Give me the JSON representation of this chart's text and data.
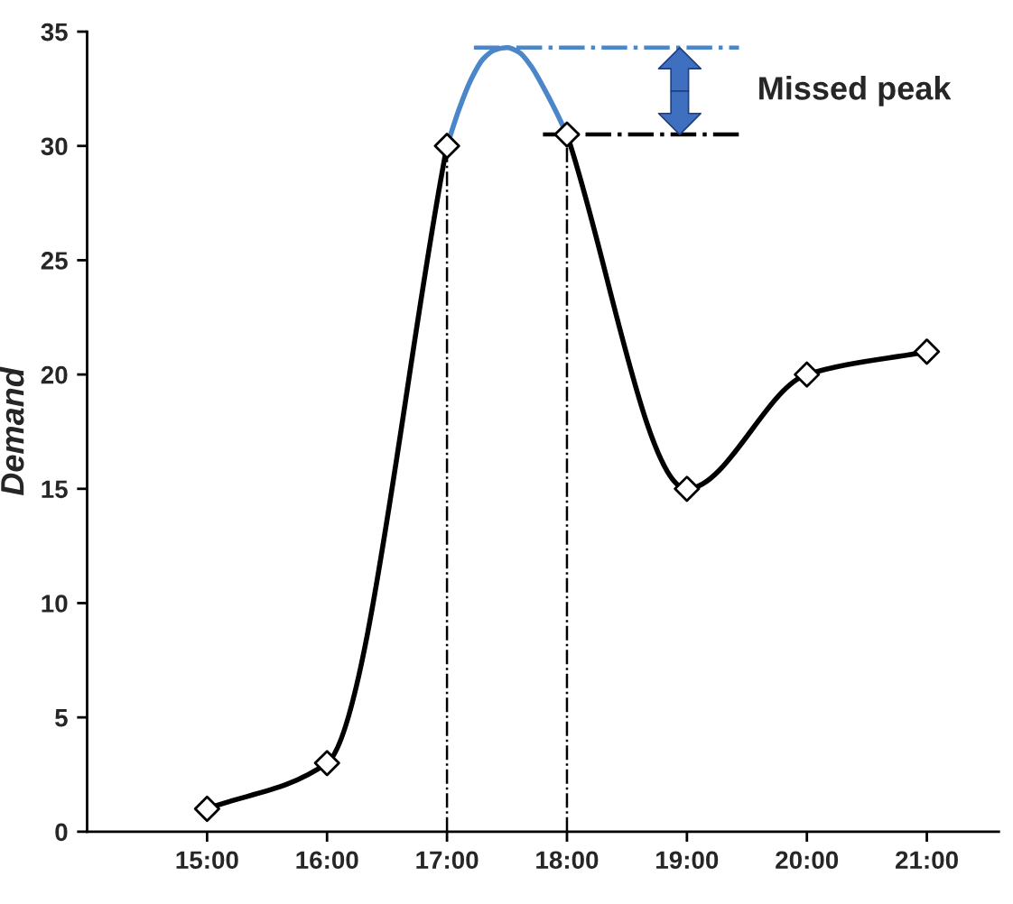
{
  "chart_data": {
    "type": "line",
    "ylabel": "Demand",
    "series": [
      {
        "color": "#000000",
        "marker": "diamond",
        "x": [
          15,
          16,
          17
        ],
        "values": [
          1,
          3,
          30
        ]
      },
      {
        "color": "#000000",
        "marker": "diamond",
        "x": [
          18,
          19,
          20,
          21
        ],
        "values": [
          30.5,
          15,
          20,
          21
        ]
      },
      {
        "color": "#4a86c8",
        "marker": "none",
        "x": [
          17,
          17.1,
          17.2,
          17.3,
          17.4,
          17.5,
          17.6,
          17.7,
          17.8,
          17.9,
          18
        ],
        "values": [
          30,
          31.6,
          32.9,
          33.8,
          34.2,
          34.3,
          34.1,
          33.5,
          32.6,
          31.6,
          30.5
        ]
      }
    ],
    "xlim": [
      14,
      21.6
    ],
    "xticks": [
      {
        "value": 15,
        "label": "15:00"
      },
      {
        "value": 16,
        "label": "16:00"
      },
      {
        "value": 17,
        "label": "17:00"
      },
      {
        "value": 18,
        "label": "18:00"
      },
      {
        "value": 19,
        "label": "19:00"
      },
      {
        "value": 20,
        "label": "20:00"
      },
      {
        "value": 21,
        "label": "21:00"
      }
    ],
    "ylim": [
      0,
      35
    ],
    "yticks": [
      0,
      5,
      10,
      15,
      20,
      25,
      30,
      35
    ],
    "ref_lines": [
      {
        "axis": "x",
        "value": 17,
        "color": "#000000",
        "line_style": "dashdot"
      },
      {
        "axis": "x",
        "value": 18,
        "color": "#000000",
        "line_style": "dashdot"
      },
      {
        "axis": "y",
        "value": 34.3,
        "color": "#4a86c8",
        "line_style": "dashdot"
      },
      {
        "axis": "y",
        "value": 30.5,
        "color": "#000000",
        "line_style": "dashdot"
      }
    ],
    "annotations": [
      "Missed peak"
    ],
    "grid": false,
    "legend": false
  }
}
